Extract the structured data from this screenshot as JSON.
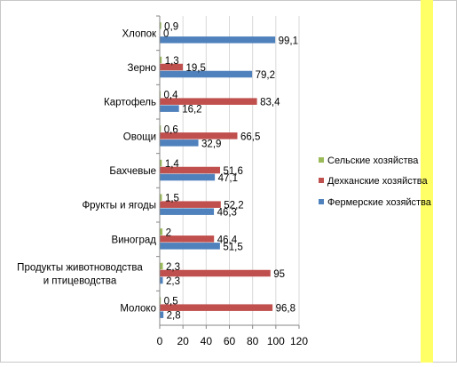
{
  "chart_data": {
    "type": "bar",
    "orientation": "horizontal",
    "categories": [
      "Хлопок",
      "Зерно",
      "Картофель",
      "Овощи",
      "Бахчевые",
      "Фрукты и ягоды",
      "Виноград",
      [
        "Продукты животноводства",
        "и птицеводства"
      ],
      "Молоко"
    ],
    "series": [
      {
        "name": "Сельские хозяйства",
        "color": "#9BBB59",
        "values": [
          0.9,
          1.3,
          0.4,
          0.6,
          1.4,
          1.5,
          2,
          2.3,
          0.5
        ],
        "value_labels": [
          "0,9",
          "1,3",
          "0,4",
          "0,6",
          "1,4",
          "1,5",
          "2",
          "2,3",
          "0,5"
        ]
      },
      {
        "name": "Дехканские хозяйства",
        "color": "#C0504D",
        "values": [
          0,
          19.5,
          83.4,
          66.5,
          51.6,
          52.2,
          46.4,
          95,
          96.8
        ],
        "value_labels": [
          "0",
          "19,5",
          "83,4",
          "66,5",
          "51,6",
          "52,2",
          "46,4",
          "95",
          "96,8"
        ]
      },
      {
        "name": "Фермерские хозяйства",
        "color": "#4F81BD",
        "values": [
          99.1,
          79.2,
          16.2,
          32.9,
          47.1,
          46.3,
          51.5,
          2.3,
          2.8
        ],
        "value_labels": [
          "99,1",
          "79,2",
          "16,2",
          "32,9",
          "47,1",
          "46,3",
          "51,5",
          "2,3",
          "2,8"
        ]
      }
    ],
    "x_ticks": [
      "0",
      "20",
      "40",
      "60",
      "80",
      "100",
      "120"
    ],
    "xlim": [
      0,
      120
    ],
    "xlabel": "",
    "ylabel": "",
    "title": "",
    "grid": true,
    "legend_position": "right"
  }
}
